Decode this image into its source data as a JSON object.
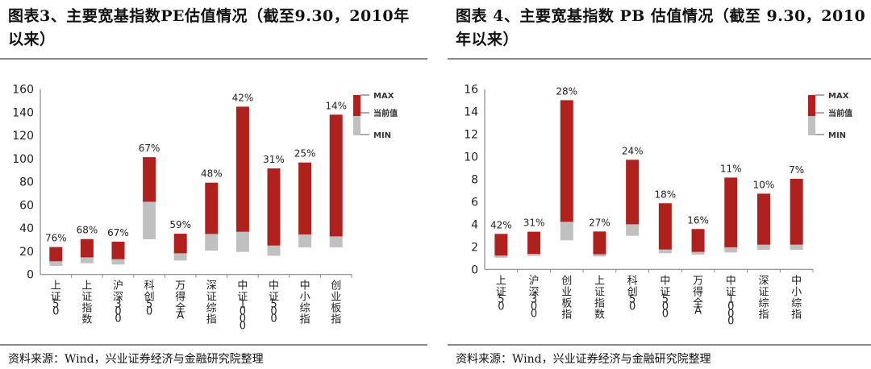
{
  "colors": {
    "range_upper": "#b0201c",
    "range_lower": "#c0c0c0",
    "axis": "#888888"
  },
  "chart_data": [
    {
      "type": "bar",
      "title": "图表3、主要宽基指数PE估值情况（截至9.30，2010年以来）",
      "source": "资料来源：Wind，兴业证券经济与金融研究院整理",
      "categories": [
        "上证50",
        "上证指数",
        "沪深300",
        "科创50",
        "万得全A",
        "深证综指",
        "中证1000",
        "中证500",
        "中小综指",
        "创业板指"
      ],
      "max": [
        23.7,
        30.6,
        28.3,
        101.3,
        35.2,
        79.3,
        144.9,
        91.6,
        96.7,
        138.0
      ],
      "current": [
        11.4,
        14.8,
        13.2,
        62.8,
        18.3,
        35.0,
        36.9,
        25.0,
        34.6,
        32.9
      ],
      "min": [
        7.4,
        9.7,
        8.6,
        30.4,
        12.1,
        20.6,
        19.5,
        16.2,
        23.4,
        23.4
      ],
      "percentile_labels": [
        "76%",
        "68%",
        "67%",
        "67%",
        "59%",
        "48%",
        "42%",
        "31%",
        "25%",
        "14%"
      ],
      "ylim": [
        0,
        160
      ],
      "yticks": [
        "0",
        "20",
        "40",
        "60",
        "80",
        "100",
        "120",
        "140",
        "160"
      ],
      "legend": [
        "MAX",
        "当前值",
        "MIN"
      ],
      "legend_position": "top-right",
      "grid": false
    },
    {
      "type": "bar",
      "title": "图表 4、主要宽基指数 PB 估值情况（截至 9.30，2010年以来）",
      "source": "资料来源：Wind，兴业证券经济与金融研究院整理",
      "categories": [
        "上证50",
        "沪深300",
        "创业板指",
        "上证指数",
        "科创50",
        "中证500",
        "万得全A",
        "中证1000",
        "深证综指",
        "中小综指"
      ],
      "max": [
        3.15,
        3.34,
        15.02,
        3.36,
        9.73,
        5.87,
        3.58,
        8.15,
        6.72,
        8.04
      ],
      "current": [
        1.22,
        1.38,
        4.22,
        1.34,
        4.0,
        1.76,
        1.55,
        1.96,
        2.19,
        2.19
      ],
      "min": [
        1.03,
        1.19,
        2.58,
        1.14,
        2.98,
        1.43,
        1.31,
        1.5,
        1.74,
        1.74
      ],
      "percentile_labels": [
        "42%",
        "31%",
        "28%",
        "27%",
        "24%",
        "18%",
        "16%",
        "11%",
        "10%",
        "7%"
      ],
      "ylim": [
        0,
        16
      ],
      "yticks": [
        "0",
        "2",
        "4",
        "6",
        "8",
        "10",
        "12",
        "14",
        "16"
      ],
      "legend": [
        "MAX",
        "当前值",
        "MIN"
      ],
      "legend_position": "top-right",
      "grid": false
    }
  ]
}
